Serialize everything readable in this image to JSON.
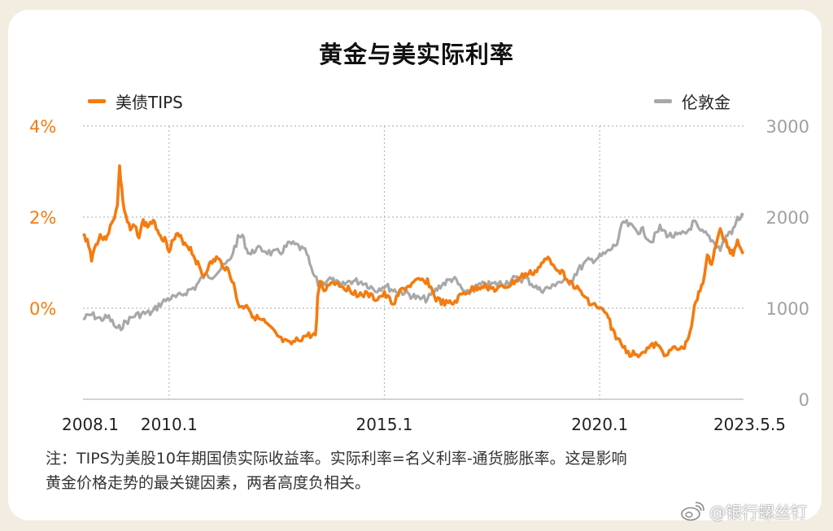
{
  "watermark": "@银行螺丝钉",
  "colors": {
    "tips": "#f47b0f",
    "gold": "#a8a8a8",
    "grid": "#b9b9b9"
  },
  "chart_data": {
    "type": "line",
    "title": "黄金与美实际利率",
    "x_tick_labels": [
      "2008.1",
      "2010.1",
      "2015.1",
      "2020.1",
      "2023.5.5"
    ],
    "x_ticks": [
      2008.0,
      2010.0,
      2015.0,
      2020.0,
      2023.34
    ],
    "xlim": [
      2008.0,
      2023.34
    ],
    "y_left": {
      "ticks": [
        0,
        2,
        4
      ],
      "tick_labels": [
        "0%",
        "2%",
        "4%"
      ],
      "ylim": [
        -2,
        4
      ]
    },
    "y_right": {
      "ticks": [
        0,
        1000,
        2000,
        3000
      ],
      "tick_labels": [
        "0",
        "1000",
        "2000",
        "3000"
      ],
      "ylim": [
        0,
        3000
      ]
    },
    "grid": true,
    "legend_placement": "top",
    "series": [
      {
        "name": "美债TIPS",
        "axis": "left",
        "color": "#f47b0f",
        "points": [
          [
            2008.0,
            1.6
          ],
          [
            2008.1,
            1.5
          ],
          [
            2008.2,
            1.1
          ],
          [
            2008.3,
            1.4
          ],
          [
            2008.4,
            1.6
          ],
          [
            2008.5,
            1.5
          ],
          [
            2008.6,
            1.7
          ],
          [
            2008.7,
            1.9
          ],
          [
            2008.8,
            2.3
          ],
          [
            2008.85,
            3.1
          ],
          [
            2008.9,
            2.6
          ],
          [
            2008.95,
            2.2
          ],
          [
            2009.0,
            2.0
          ],
          [
            2009.1,
            1.7
          ],
          [
            2009.2,
            1.8
          ],
          [
            2009.3,
            1.6
          ],
          [
            2009.4,
            1.9
          ],
          [
            2009.5,
            1.8
          ],
          [
            2009.6,
            1.9
          ],
          [
            2009.7,
            1.8
          ],
          [
            2009.8,
            1.6
          ],
          [
            2009.9,
            1.5
          ],
          [
            2010.0,
            1.3
          ],
          [
            2010.1,
            1.5
          ],
          [
            2010.2,
            1.6
          ],
          [
            2010.3,
            1.5
          ],
          [
            2010.4,
            1.4
          ],
          [
            2010.5,
            1.3
          ],
          [
            2010.6,
            1.1
          ],
          [
            2010.7,
            0.9
          ],
          [
            2010.8,
            0.7
          ],
          [
            2010.9,
            0.9
          ],
          [
            2011.0,
            1.0
          ],
          [
            2011.1,
            1.1
          ],
          [
            2011.2,
            1.0
          ],
          [
            2011.3,
            0.9
          ],
          [
            2011.4,
            0.8
          ],
          [
            2011.5,
            0.5
          ],
          [
            2011.6,
            0.1
          ],
          [
            2011.7,
            0.0
          ],
          [
            2011.8,
            0.1
          ],
          [
            2011.9,
            -0.1
          ],
          [
            2012.0,
            -0.2
          ],
          [
            2012.2,
            -0.3
          ],
          [
            2012.4,
            -0.5
          ],
          [
            2012.6,
            -0.7
          ],
          [
            2012.8,
            -0.8
          ],
          [
            2013.0,
            -0.7
          ],
          [
            2013.2,
            -0.6
          ],
          [
            2013.4,
            -0.6
          ],
          [
            2013.45,
            0.2
          ],
          [
            2013.5,
            0.6
          ],
          [
            2013.6,
            0.4
          ],
          [
            2013.8,
            0.6
          ],
          [
            2014.0,
            0.5
          ],
          [
            2014.2,
            0.4
          ],
          [
            2014.4,
            0.3
          ],
          [
            2014.6,
            0.3
          ],
          [
            2014.8,
            0.2
          ],
          [
            2015.0,
            0.3
          ],
          [
            2015.2,
            0.1
          ],
          [
            2015.4,
            0.4
          ],
          [
            2015.6,
            0.5
          ],
          [
            2015.8,
            0.6
          ],
          [
            2016.0,
            0.6
          ],
          [
            2016.2,
            0.2
          ],
          [
            2016.4,
            0.1
          ],
          [
            2016.6,
            0.1
          ],
          [
            2016.8,
            0.3
          ],
          [
            2017.0,
            0.4
          ],
          [
            2017.3,
            0.5
          ],
          [
            2017.6,
            0.4
          ],
          [
            2017.9,
            0.5
          ],
          [
            2018.2,
            0.7
          ],
          [
            2018.5,
            0.8
          ],
          [
            2018.8,
            1.1
          ],
          [
            2019.0,
            0.9
          ],
          [
            2019.2,
            0.7
          ],
          [
            2019.4,
            0.5
          ],
          [
            2019.6,
            0.3
          ],
          [
            2019.8,
            0.1
          ],
          [
            2020.0,
            0.0
          ],
          [
            2020.2,
            -0.2
          ],
          [
            2020.3,
            -0.5
          ],
          [
            2020.5,
            -0.8
          ],
          [
            2020.7,
            -1.0
          ],
          [
            2020.9,
            -1.0
          ],
          [
            2021.1,
            -0.9
          ],
          [
            2021.3,
            -0.8
          ],
          [
            2021.5,
            -1.0
          ],
          [
            2021.7,
            -0.9
          ],
          [
            2021.9,
            -0.9
          ],
          [
            2022.0,
            -0.8
          ],
          [
            2022.1,
            -0.5
          ],
          [
            2022.2,
            0.0
          ],
          [
            2022.3,
            0.3
          ],
          [
            2022.4,
            0.6
          ],
          [
            2022.5,
            1.1
          ],
          [
            2022.6,
            1.0
          ],
          [
            2022.7,
            1.4
          ],
          [
            2022.8,
            1.7
          ],
          [
            2022.9,
            1.5
          ],
          [
            2023.0,
            1.3
          ],
          [
            2023.1,
            1.2
          ],
          [
            2023.2,
            1.5
          ],
          [
            2023.3,
            1.3
          ],
          [
            2023.34,
            1.2
          ]
        ]
      },
      {
        "name": "伦敦金",
        "axis": "right",
        "color": "#a8a8a8",
        "points": [
          [
            2008.0,
            880
          ],
          [
            2008.2,
            930
          ],
          [
            2008.4,
            880
          ],
          [
            2008.6,
            900
          ],
          [
            2008.8,
            760
          ],
          [
            2009.0,
            850
          ],
          [
            2009.2,
            920
          ],
          [
            2009.4,
            940
          ],
          [
            2009.6,
            950
          ],
          [
            2009.8,
            1050
          ],
          [
            2010.0,
            1110
          ],
          [
            2010.2,
            1120
          ],
          [
            2010.4,
            1180
          ],
          [
            2010.6,
            1230
          ],
          [
            2010.8,
            1350
          ],
          [
            2011.0,
            1360
          ],
          [
            2011.2,
            1430
          ],
          [
            2011.4,
            1520
          ],
          [
            2011.6,
            1760
          ],
          [
            2011.7,
            1800
          ],
          [
            2011.8,
            1650
          ],
          [
            2011.9,
            1590
          ],
          [
            2012.0,
            1650
          ],
          [
            2012.2,
            1640
          ],
          [
            2012.4,
            1600
          ],
          [
            2012.6,
            1620
          ],
          [
            2012.8,
            1710
          ],
          [
            2013.0,
            1680
          ],
          [
            2013.2,
            1600
          ],
          [
            2013.3,
            1420
          ],
          [
            2013.5,
            1230
          ],
          [
            2013.7,
            1330
          ],
          [
            2014.0,
            1240
          ],
          [
            2014.2,
            1300
          ],
          [
            2014.5,
            1290
          ],
          [
            2014.8,
            1200
          ],
          [
            2015.0,
            1250
          ],
          [
            2015.2,
            1200
          ],
          [
            2015.5,
            1170
          ],
          [
            2015.8,
            1100
          ],
          [
            2016.0,
            1100
          ],
          [
            2016.3,
            1250
          ],
          [
            2016.6,
            1330
          ],
          [
            2016.9,
            1150
          ],
          [
            2017.2,
            1250
          ],
          [
            2017.5,
            1260
          ],
          [
            2017.8,
            1280
          ],
          [
            2018.0,
            1320
          ],
          [
            2018.3,
            1320
          ],
          [
            2018.6,
            1200
          ],
          [
            2018.9,
            1230
          ],
          [
            2019.0,
            1290
          ],
          [
            2019.3,
            1290
          ],
          [
            2019.5,
            1420
          ],
          [
            2019.7,
            1510
          ],
          [
            2020.0,
            1560
          ],
          [
            2020.2,
            1620
          ],
          [
            2020.4,
            1710
          ],
          [
            2020.55,
            1950
          ],
          [
            2020.7,
            1900
          ],
          [
            2020.9,
            1850
          ],
          [
            2021.0,
            1850
          ],
          [
            2021.2,
            1730
          ],
          [
            2021.4,
            1880
          ],
          [
            2021.6,
            1800
          ],
          [
            2021.8,
            1790
          ],
          [
            2022.0,
            1820
          ],
          [
            2022.2,
            1950
          ],
          [
            2022.3,
            1850
          ],
          [
            2022.5,
            1800
          ],
          [
            2022.7,
            1700
          ],
          [
            2022.8,
            1650
          ],
          [
            2022.9,
            1750
          ],
          [
            2023.0,
            1830
          ],
          [
            2023.1,
            1850
          ],
          [
            2023.2,
            1980
          ],
          [
            2023.34,
            2020
          ]
        ]
      }
    ]
  },
  "legend": [
    {
      "label": "美债TIPS"
    },
    {
      "label": "伦敦金"
    }
  ],
  "note": {
    "line1": "注：TIPS为美股10年期国债实际收益率。实际利率=名义利率-通货膨胀率。这是影响",
    "line2": "黄金价格走势的最关键因素，两者高度负相关。"
  }
}
